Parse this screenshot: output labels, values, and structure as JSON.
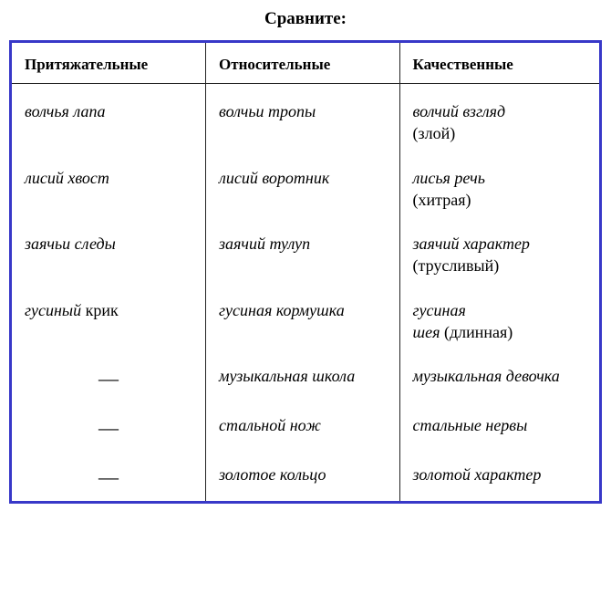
{
  "title": "Сравните:",
  "columns": [
    "Притяжательные",
    "Относительные",
    "Качественные"
  ],
  "rows": [
    {
      "c1": "волчья лапа",
      "c2": "волчьи тропы",
      "c3_italic": "волчий взгляд",
      "c3_note": "(злой)"
    },
    {
      "c1": "лисий хвост",
      "c2": "лисий воротник",
      "c3_italic": "лисья речь",
      "c3_note": "(хитрая)"
    },
    {
      "c1": "заячьи следы",
      "c2": "заячий тулуп",
      "c3_italic": "заячий характер",
      "c3_note": "(трусливый)"
    },
    {
      "c1_part1": "гусиный ",
      "c1_part2_upright": "крик",
      "c2": "гусиная кормушка",
      "c3_line1": "гусиная",
      "c3_line2_italic": "шея ",
      "c3_line2_note": "(длинная)"
    },
    {
      "c1_dash": "—",
      "c2": "музыкальная школа",
      "c3": "музыкальная девочка"
    },
    {
      "c1_dash": "—",
      "c2": "стальной нож",
      "c3": "стальные нервы"
    },
    {
      "c1_dash": "—",
      "c2": "золотое кольцо",
      "c3": "золотой характер"
    }
  ]
}
